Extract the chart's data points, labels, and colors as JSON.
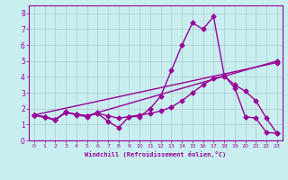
{
  "xlabel": "Windchill (Refroidissement éolien,°C)",
  "bg_color": "#c8eef0",
  "line_color": "#990099",
  "grid_color": "#b0c8c8",
  "xlim": [
    -0.5,
    23.5
  ],
  "ylim": [
    0,
    8.5
  ],
  "xticks": [
    0,
    1,
    2,
    3,
    4,
    5,
    6,
    7,
    8,
    9,
    10,
    11,
    12,
    13,
    14,
    15,
    16,
    17,
    18,
    19,
    20,
    21,
    22,
    23
  ],
  "yticks": [
    0,
    1,
    2,
    3,
    4,
    5,
    6,
    7,
    8
  ],
  "line1_x": [
    0,
    1,
    2,
    3,
    4,
    5,
    6,
    7,
    8,
    9,
    10,
    11,
    12,
    13,
    14,
    15,
    16,
    17,
    18,
    19,
    20,
    21,
    22,
    23
  ],
  "line1_y": [
    1.6,
    1.5,
    1.3,
    1.8,
    1.6,
    1.5,
    1.7,
    1.2,
    0.8,
    1.5,
    1.5,
    2.0,
    2.8,
    4.4,
    6.0,
    7.4,
    7.0,
    7.8,
    4.1,
    3.3,
    1.5,
    1.4,
    0.5,
    0.45
  ],
  "line2_x": [
    0,
    1,
    2,
    3,
    4,
    5,
    6,
    7,
    8,
    9,
    10,
    11,
    12,
    13,
    14,
    15,
    16,
    17,
    18,
    19,
    20,
    21,
    22,
    23
  ],
  "line2_y": [
    1.6,
    1.45,
    1.3,
    1.75,
    1.65,
    1.55,
    1.7,
    1.55,
    1.4,
    1.5,
    1.6,
    1.7,
    1.85,
    2.1,
    2.5,
    3.0,
    3.5,
    3.9,
    4.05,
    3.5,
    3.1,
    2.5,
    1.4,
    0.45
  ],
  "line3_x": [
    0,
    23
  ],
  "line3_y": [
    1.6,
    4.9
  ],
  "line4_x": [
    0,
    1,
    2,
    3,
    4,
    5,
    6,
    23
  ],
  "line4_y": [
    1.6,
    1.45,
    1.3,
    1.75,
    1.65,
    1.55,
    1.75,
    5.0
  ],
  "markersize": 2.5,
  "linewidth": 1.0
}
